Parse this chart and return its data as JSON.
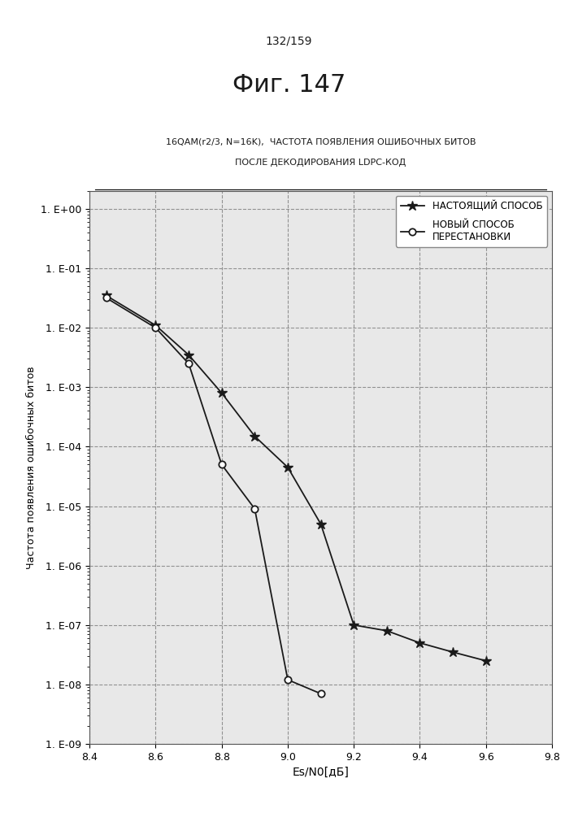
{
  "page_label": "132/159",
  "fig_label": "Фиг. 147",
  "chart_title_line1": "16QAM(r2/3, N=16K),  ЧАСТОТА ПОЯВЛЕНИЯ ОШИБОЧНЫХ БИТОВ",
  "chart_title_line2": "ПОСЛЕ ДЕКОДИРОВАНИЯ LDPC-КОД",
  "xlabel": "Es/N0[дБ]",
  "ylabel": "Частота появления ошибочных битов",
  "xlim": [
    8.4,
    9.8
  ],
  "xticks": [
    8.4,
    8.6,
    8.8,
    9.0,
    9.2,
    9.4,
    9.6,
    9.8
  ],
  "background_color": "#ffffff",
  "plot_bg_color": "#e8e8e8",
  "grid_color": "#888888",
  "line_color": "#1a1a1a",
  "legend_border_color": "#888888",
  "series1_label": "НАСТОЯЩИЙ СПОСОБ",
  "series1_x": [
    8.45,
    8.6,
    8.7,
    8.8,
    8.9,
    9.0,
    9.1,
    9.2,
    9.3,
    9.4,
    9.5,
    9.6
  ],
  "series1_y": [
    0.035,
    0.011,
    0.0035,
    0.0008,
    0.00015,
    4.5e-05,
    5e-06,
    1e-07,
    8e-08,
    5e-08,
    3.5e-08,
    2.5e-08
  ],
  "series2_label_line1": "НОВЫЙ СПОСОБ",
  "series2_label_line2": "ПЕРЕСТАНОВКИ",
  "series2_x": [
    8.45,
    8.6,
    8.7,
    8.8,
    8.9,
    9.0,
    9.1
  ],
  "series2_y": [
    0.032,
    0.01,
    0.0025,
    5e-05,
    9e-06,
    1.2e-08,
    7e-09
  ],
  "ytick_labels": [
    "1. E+00",
    "1. E-01",
    "1. E-02",
    "1. E-03",
    "1. E-04",
    "1. E-05",
    "1. E-06",
    "1. E-07",
    "1. E-08",
    "1. E-09"
  ]
}
